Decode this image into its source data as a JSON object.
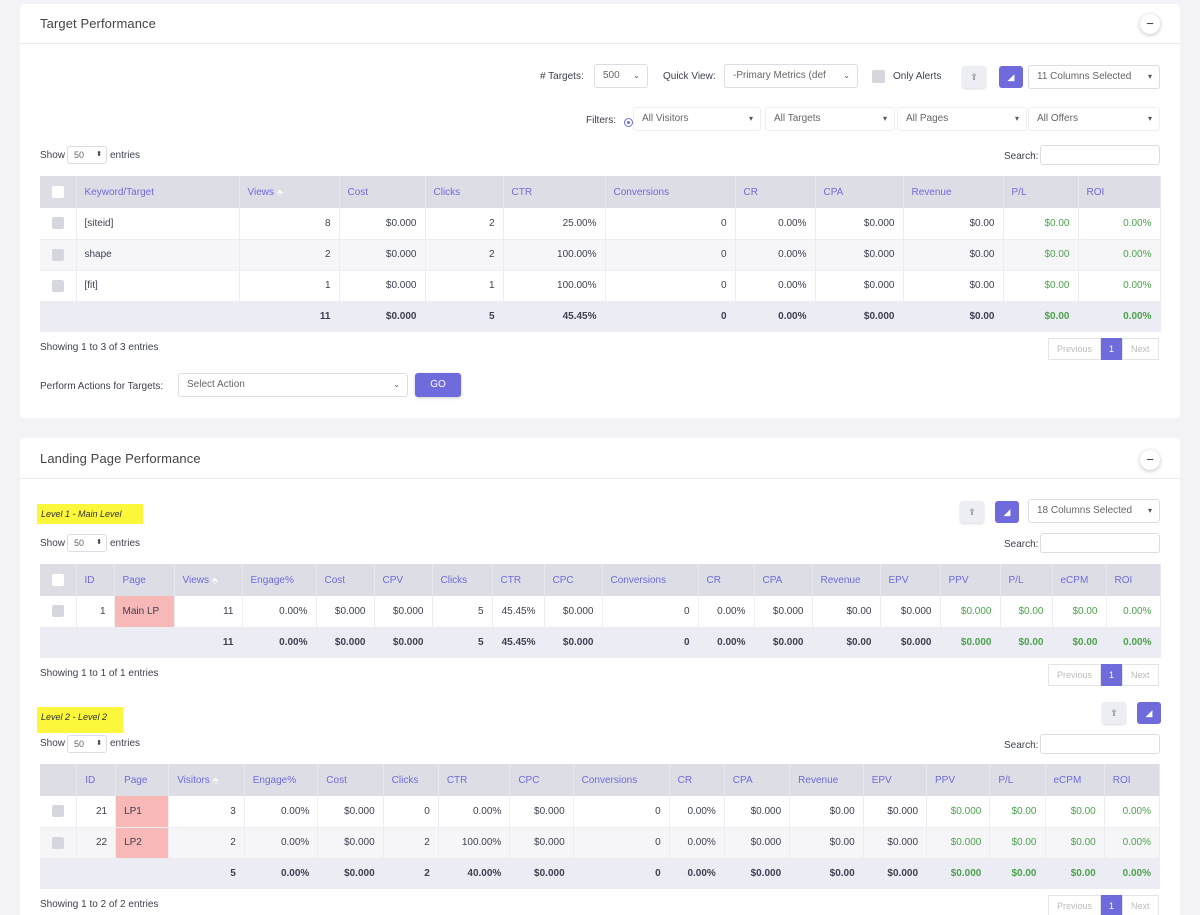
{
  "target": {
    "title": "Target Performance",
    "targets_label": "# Targets:",
    "targets_value": "500",
    "quick_view_label": "Quick View:",
    "quick_view_value": "-Primary Metrics (def",
    "only_alerts": "Only Alerts",
    "columns_selected": "11 Columns Selected",
    "filters_label": "Filters:",
    "filters": [
      "All Visitors",
      "All Targets",
      "All Pages",
      "All Offers"
    ],
    "show": "Show",
    "entries_value": "50",
    "entries": "entries",
    "search": "Search:",
    "headers": [
      "Keyword/Target",
      "Views",
      "Cost",
      "Clicks",
      "CTR",
      "Conversions",
      "CR",
      "CPA",
      "Revenue",
      "P/L",
      "ROI"
    ],
    "rows": [
      [
        "[siteid]",
        "8",
        "$0.000",
        "2",
        "25.00%",
        "0",
        "0.00%",
        "$0.000",
        "$0.00",
        "$0.00",
        "0.00%"
      ],
      [
        "shape",
        "2",
        "$0.000",
        "2",
        "100.00%",
        "0",
        "0.00%",
        "$0.000",
        "$0.00",
        "$0.00",
        "0.00%"
      ],
      [
        "[fit]",
        "1",
        "$0.000",
        "1",
        "100.00%",
        "0",
        "0.00%",
        "$0.000",
        "$0.00",
        "$0.00",
        "0.00%"
      ]
    ],
    "total": [
      "",
      "11",
      "$0.000",
      "5",
      "45.45%",
      "0",
      "0.00%",
      "$0.000",
      "$0.00",
      "$0.00",
      "0.00%"
    ],
    "showing": "Showing 1 to 3 of 3 entries",
    "previous": "Previous",
    "page": "1",
    "next": "Next",
    "perform_label": "Perform Actions for Targets:",
    "select_action": "Select Action",
    "go": "GO"
  },
  "landing": {
    "title": "Landing Page Performance",
    "level1": {
      "label": "Level 1 - Main Level",
      "columns_selected": "18 Columns Selected",
      "headers": [
        "ID",
        "Page",
        "Views",
        "Engage%",
        "Cost",
        "CPV",
        "Clicks",
        "CTR",
        "CPC",
        "Conversions",
        "CR",
        "CPA",
        "Revenue",
        "EPV",
        "PPV",
        "P/L",
        "eCPM",
        "ROI"
      ],
      "rows": [
        [
          "1",
          "Main LP",
          "11",
          "0.00%",
          "$0.000",
          "$0.000",
          "5",
          "45.45%",
          "$0.000",
          "0",
          "0.00%",
          "$0.000",
          "$0.00",
          "$0.000",
          "$0.000",
          "$0.00",
          "$0.00",
          "0.00%"
        ]
      ],
      "total": [
        "",
        "",
        "11",
        "0.00%",
        "$0.000",
        "$0.000",
        "5",
        "45.45%",
        "$0.000",
        "0",
        "0.00%",
        "$0.000",
        "$0.00",
        "$0.000",
        "$0.000",
        "$0.00",
        "$0.00",
        "0.00%"
      ],
      "showing": "Showing 1 to 1 of 1 entries"
    },
    "level2": {
      "label": "Level 2 - Level 2",
      "headers": [
        "ID",
        "Page",
        "Visitors",
        "Engage%",
        "Cost",
        "Clicks",
        "CTR",
        "CPC",
        "Conversions",
        "CR",
        "CPA",
        "Revenue",
        "EPV",
        "PPV",
        "P/L",
        "eCPM",
        "ROI"
      ],
      "rows": [
        [
          "21",
          "LP1",
          "3",
          "0.00%",
          "$0.000",
          "0",
          "0.00%",
          "$0.000",
          "0",
          "0.00%",
          "$0.000",
          "$0.00",
          "$0.000",
          "$0.000",
          "$0.00",
          "$0.00",
          "0.00%"
        ],
        [
          "22",
          "LP2",
          "2",
          "0.00%",
          "$0.000",
          "2",
          "100.00%",
          "$0.000",
          "0",
          "0.00%",
          "$0.000",
          "$0.00",
          "$0.000",
          "$0.000",
          "$0.00",
          "$0.00",
          "0.00%"
        ]
      ],
      "total": [
        "",
        "",
        "5",
        "0.00%",
        "$0.000",
        "2",
        "40.00%",
        "$0.000",
        "0",
        "0.00%",
        "$0.000",
        "$0.00",
        "$0.000",
        "$0.000",
        "$0.00",
        "$0.00",
        "0.00%"
      ],
      "showing": "Showing 1 to 2 of 2 entries"
    }
  },
  "colors": {
    "accent": "#6f6bdc",
    "positive": "#4ca34c",
    "highlight": "#fbf73a",
    "page_cell": "#f8b8b8"
  },
  "icons": [
    "minus-icon",
    "export-icon",
    "chart-icon",
    "caret-down-icon",
    "sort-icon",
    "filter-radio-icon"
  ]
}
